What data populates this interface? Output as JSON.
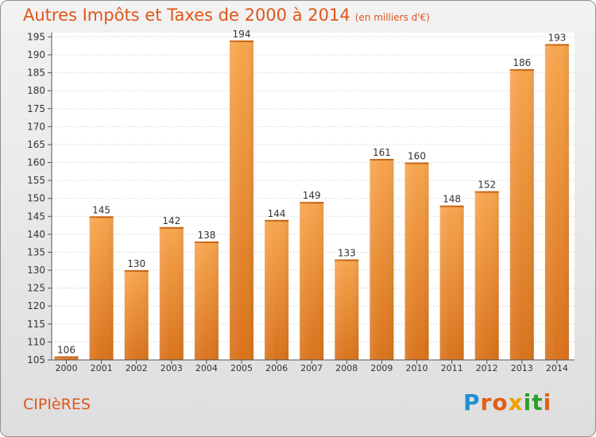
{
  "chart": {
    "title": "Autres Impôts et Taxes de 2000 à 2014",
    "unit": "(en milliers d'€)"
  },
  "city": "CIPIèRES",
  "brand": {
    "text": "Proxiti",
    "letters": [
      {
        "ch": "P",
        "color": "#1e8fd0"
      },
      {
        "ch": "r",
        "color": "#e0601a"
      },
      {
        "ch": "o",
        "color": "#e0601a"
      },
      {
        "ch": "x",
        "color": "#f0a000"
      },
      {
        "ch": "i",
        "color": "#2aa02a"
      },
      {
        "ch": "t",
        "color": "#2aa02a"
      },
      {
        "ch": "i",
        "color": "#e0601a"
      }
    ]
  },
  "colors": {
    "accent": "#e0561a",
    "bar_top": "#f7a54e",
    "bar_bottom": "#d9731c"
  },
  "chart_data": {
    "type": "bar",
    "title": "Autres Impôts et Taxes de 2000 à 2014",
    "subtitle": "(en milliers d'€)",
    "categories": [
      "2000",
      "2001",
      "2002",
      "2003",
      "2004",
      "2005",
      "2006",
      "2007",
      "2008",
      "2009",
      "2010",
      "2011",
      "2012",
      "2013",
      "2014"
    ],
    "values": [
      106,
      145,
      130,
      142,
      138,
      194,
      144,
      149,
      133,
      161,
      160,
      148,
      152,
      186,
      193
    ],
    "ylim": [
      105,
      195
    ],
    "yticks": [
      105,
      110,
      115,
      120,
      125,
      130,
      135,
      140,
      145,
      150,
      155,
      160,
      165,
      170,
      175,
      180,
      185,
      190,
      195
    ],
    "grid": true,
    "legend": "none"
  }
}
